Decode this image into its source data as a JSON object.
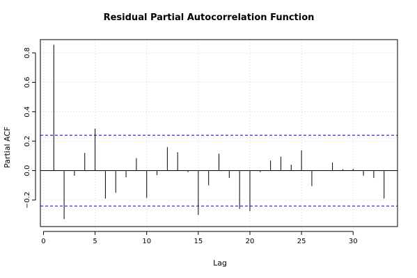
{
  "chart_data": {
    "type": "bar",
    "title": "Residual Partial Autocorrelation Function",
    "xlabel": "Lag",
    "ylabel": "Partial ACF",
    "xlim": [
      -0.3,
      34.3
    ],
    "ylim": [
      -0.38,
      0.89
    ],
    "xticks": [
      0,
      5,
      10,
      15,
      20,
      25,
      30
    ],
    "yticks": [
      -0.2,
      0.0,
      0.2,
      0.4,
      0.6,
      0.8
    ],
    "xtick_labels": [
      "0",
      "5",
      "10",
      "15",
      "20",
      "25",
      "30"
    ],
    "ytick_labels": [
      "−0.2",
      "0.0",
      "0.2",
      "0.4",
      "0.6",
      "0.8"
    ],
    "grid": true,
    "confidence_bound": 0.24,
    "colors": {
      "bars": "#000000",
      "bounds": "#0000ff",
      "grid": "#d3d3d3",
      "zero": "#000000"
    },
    "lags": [
      1,
      2,
      3,
      4,
      5,
      6,
      7,
      8,
      9,
      10,
      11,
      12,
      13,
      14,
      15,
      16,
      17,
      18,
      19,
      20,
      21,
      22,
      23,
      24,
      25,
      26,
      27,
      28,
      29,
      30,
      31,
      32,
      33
    ],
    "values": [
      0.855,
      -0.33,
      -0.035,
      0.12,
      0.285,
      -0.19,
      -0.15,
      -0.045,
      0.085,
      -0.185,
      -0.03,
      0.16,
      0.125,
      -0.01,
      -0.3,
      -0.1,
      0.115,
      -0.05,
      -0.26,
      -0.275,
      -0.01,
      0.068,
      0.095,
      0.04,
      0.138,
      -0.105,
      0.0,
      0.055,
      0.01,
      0.012,
      -0.035,
      -0.05,
      -0.19
    ]
  }
}
